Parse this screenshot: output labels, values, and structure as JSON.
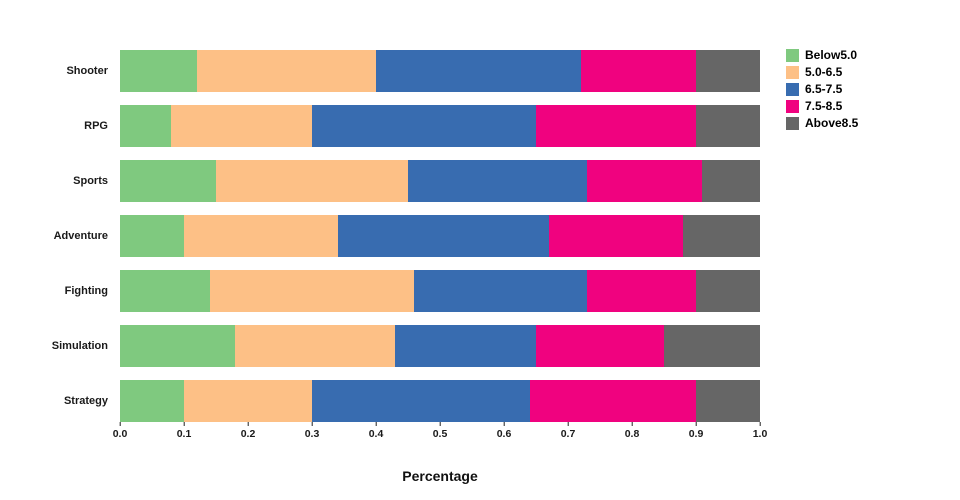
{
  "chart_data": {
    "type": "bar",
    "orientation": "horizontal",
    "stacked": true,
    "title": "",
    "xlabel": "Percentage",
    "ylabel": "",
    "xlim": [
      0.0,
      1.0
    ],
    "x_ticks": [
      "0.0",
      "0.1",
      "0.2",
      "0.3",
      "0.4",
      "0.5",
      "0.6",
      "0.7",
      "0.8",
      "0.9",
      "1.0"
    ],
    "x_tick_values": [
      0.0,
      0.1,
      0.2,
      0.3,
      0.4,
      0.5,
      0.6,
      0.7,
      0.8,
      0.9,
      1.0
    ],
    "categories": [
      "Shooter",
      "RPG",
      "Sports",
      "Adventure",
      "Fighting",
      "Simulation",
      "Strategy"
    ],
    "series": [
      {
        "name": "Below5.0",
        "color": "#7fc97f",
        "values": [
          0.12,
          0.08,
          0.15,
          0.1,
          0.14,
          0.18,
          0.1
        ]
      },
      {
        "name": "5.0-6.5",
        "color": "#fdc086",
        "values": [
          0.28,
          0.22,
          0.3,
          0.24,
          0.32,
          0.25,
          0.2
        ]
      },
      {
        "name": "6.5-7.5",
        "color": "#386cb0",
        "values": [
          0.32,
          0.35,
          0.28,
          0.33,
          0.27,
          0.22,
          0.34
        ]
      },
      {
        "name": "7.5-8.5",
        "color": "#f0027f",
        "values": [
          0.18,
          0.25,
          0.18,
          0.21,
          0.17,
          0.2,
          0.26
        ]
      },
      {
        "name": "Above8.5",
        "color": "#666666",
        "values": [
          0.1,
          0.1,
          0.09,
          0.12,
          0.1,
          0.15,
          0.1
        ]
      }
    ],
    "legend_position": "top-right-outside",
    "grid": false,
    "background_color": "#ffffff"
  }
}
